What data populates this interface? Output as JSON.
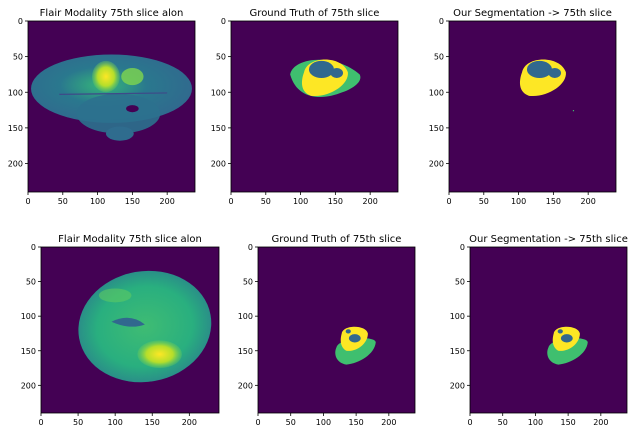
{
  "figure": {
    "panels": [
      {
        "id": "r1c1",
        "title": "Flair Modality 75th slice alon",
        "x_ticks": [
          "0",
          "50",
          "100",
          "150",
          "200"
        ],
        "y_ticks": [
          "0",
          "50",
          "100",
          "150",
          "200"
        ],
        "content": "flair-mri-brain-slice"
      },
      {
        "id": "r1c2",
        "title": "Ground Truth of 75th slice",
        "x_ticks": [
          "0",
          "50",
          "100",
          "150",
          "200"
        ],
        "y_ticks": [
          "0",
          "50",
          "100",
          "150",
          "200"
        ],
        "content": "tumor-segmentation-mask"
      },
      {
        "id": "r1c3",
        "title": "Our Segmentation -> 75th slice",
        "x_ticks": [
          "0",
          "50",
          "100",
          "150",
          "200"
        ],
        "y_ticks": [
          "0",
          "50",
          "100",
          "150",
          "200"
        ],
        "content": "tumor-segmentation-mask"
      },
      {
        "id": "r2c1",
        "title": "Flair Modality 75th slice alon",
        "x_ticks": [
          "0",
          "50",
          "100",
          "150",
          "200"
        ],
        "y_ticks": [
          "0",
          "50",
          "100",
          "150",
          "200"
        ],
        "content": "flair-mri-brain-slice"
      },
      {
        "id": "r2c2",
        "title": "Ground Truth of 75th slice",
        "x_ticks": [
          "0",
          "50",
          "100",
          "150",
          "200"
        ],
        "y_ticks": [
          "0",
          "50",
          "100",
          "150",
          "200"
        ],
        "content": "tumor-segmentation-mask"
      },
      {
        "id": "r2c3",
        "title": "Our Segmentation -> 75th slice",
        "x_ticks": [
          "0",
          "50",
          "100",
          "150",
          "200"
        ],
        "y_ticks": [
          "0",
          "50",
          "100",
          "150",
          "200"
        ],
        "content": "tumor-segmentation-mask"
      }
    ],
    "colors": {
      "background": "#440154",
      "brain_dark": "#31688e",
      "brain_mid": "#2a788e",
      "brain_light": "#35b779",
      "edema": "#3fbf6f",
      "core": "#31688e",
      "enhancing": "#fde725",
      "bright": "#b5de2b"
    }
  }
}
